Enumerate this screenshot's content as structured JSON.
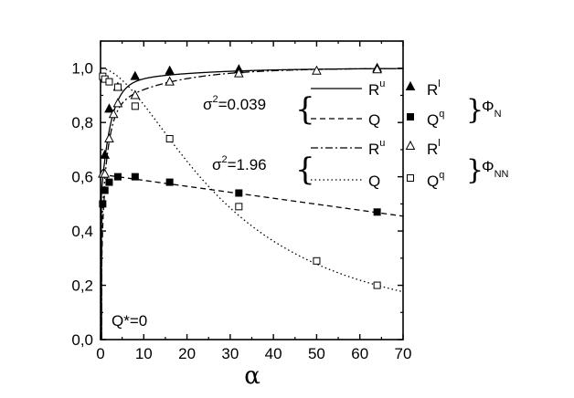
{
  "chart_data": {
    "type": "line",
    "xlabel": "α",
    "ylabel": "",
    "xlim": [
      0,
      70
    ],
    "ylim": [
      0,
      1.1
    ],
    "xticks": [
      "0",
      "10",
      "20",
      "30",
      "40",
      "50",
      "60",
      "70"
    ],
    "yticks": [
      "0,0",
      "0,2",
      "0,4",
      "0,6",
      "0,8",
      "1,0"
    ],
    "annotation": "Q*=0",
    "legend_groups": [
      {
        "sigma_label": "σ",
        "sigma_sup": "2",
        "sigma_value": "=0.039",
        "phi_label": "Φ",
        "phi_sub": "N",
        "entries": [
          {
            "line_label": "R",
            "line_sup": "u",
            "marker_label": "R",
            "marker_sup": "l"
          },
          {
            "line_label": "Q",
            "line_sup": "",
            "marker_label": "Q",
            "marker_sup": "q"
          }
        ]
      },
      {
        "sigma_label": "σ",
        "sigma_sup": "2",
        "sigma_value": "=1.96",
        "phi_label": "Φ",
        "phi_sub": "NN",
        "entries": [
          {
            "line_label": "R",
            "line_sup": "u",
            "marker_label": "R",
            "marker_sup": "l"
          },
          {
            "line_label": "Q",
            "line_sup": "",
            "marker_label": "Q",
            "marker_sup": "q"
          }
        ]
      }
    ],
    "series": [
      {
        "style": "solid",
        "marker": "filled-triangle",
        "points": [
          [
            1,
            0.68
          ],
          [
            2,
            0.85
          ],
          [
            4,
            0.93
          ],
          [
            8,
            0.97
          ],
          [
            16,
            0.99
          ],
          [
            32,
            0.995
          ],
          [
            64,
            1.0
          ]
        ]
      },
      {
        "style": "dashed",
        "marker": "filled-square",
        "points": [
          [
            0.5,
            0.5
          ],
          [
            1,
            0.55
          ],
          [
            2,
            0.58
          ],
          [
            4,
            0.6
          ],
          [
            8,
            0.6
          ],
          [
            16,
            0.58
          ],
          [
            32,
            0.54
          ],
          [
            64,
            0.47
          ]
        ]
      },
      {
        "style": "dashdot",
        "marker": "open-triangle",
        "points": [
          [
            0.5,
            0.61
          ],
          [
            1,
            0.61
          ],
          [
            2,
            0.74
          ],
          [
            3,
            0.83
          ],
          [
            4,
            0.87
          ],
          [
            8,
            0.9
          ],
          [
            16,
            0.95
          ],
          [
            32,
            0.98
          ],
          [
            50,
            0.99
          ],
          [
            64,
            0.995
          ]
        ]
      },
      {
        "style": "dotted",
        "marker": "open-square",
        "points": [
          [
            0.5,
            0.97
          ],
          [
            1,
            0.96
          ],
          [
            2,
            0.95
          ],
          [
            4,
            0.93
          ],
          [
            8,
            0.86
          ],
          [
            16,
            0.74
          ],
          [
            32,
            0.49
          ],
          [
            50,
            0.29
          ],
          [
            64,
            0.2
          ]
        ]
      }
    ]
  }
}
